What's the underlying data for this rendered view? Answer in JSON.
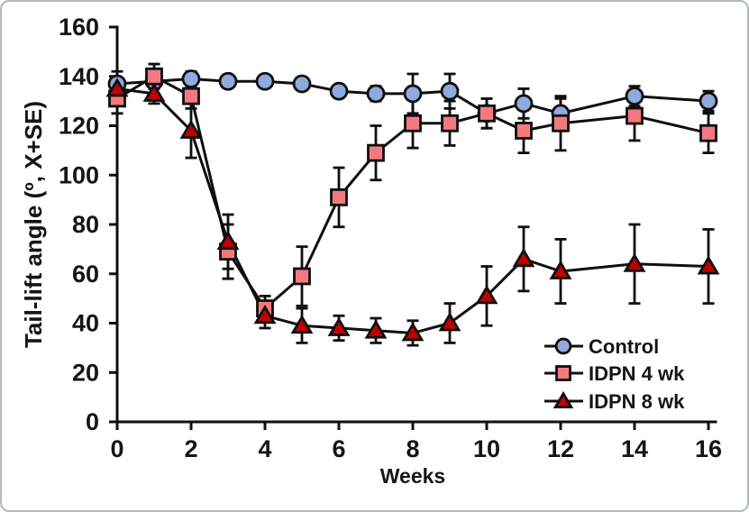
{
  "figure": {
    "background": "#ffffff",
    "border_color": "#b3bac2",
    "axis_color": "#0f0f0f",
    "text_color": "#151515"
  },
  "chart_data": {
    "type": "line",
    "title": "",
    "xlabel": "Weeks",
    "ylabel": "Tail-lift angle (º, X+SE)",
    "xlim": [
      0,
      16
    ],
    "ylim": [
      0,
      160
    ],
    "x_ticks": [
      0,
      2,
      4,
      6,
      8,
      10,
      12,
      14,
      16
    ],
    "y_ticks": [
      0,
      20,
      40,
      60,
      80,
      100,
      120,
      140,
      160
    ],
    "grid": false,
    "legend_position": "lower-right",
    "error_bars": true,
    "x": [
      0,
      1,
      2,
      3,
      4,
      5,
      6,
      7,
      8,
      9,
      10,
      11,
      12,
      14,
      16
    ],
    "series": [
      {
        "name": "Control",
        "marker": "circle",
        "marker_fill": "#8faadc",
        "marker_stroke": "#0f0f0f",
        "line_color": "#0f0f0f",
        "values": [
          137,
          138,
          139,
          138,
          138,
          137,
          134,
          133,
          133,
          134,
          125,
          129,
          125,
          132,
          130
        ],
        "se": [
          5,
          5,
          3,
          2,
          2,
          2,
          2,
          3,
          8,
          7,
          6,
          6,
          6,
          4,
          4
        ]
      },
      {
        "name": "IDPN 4 wk",
        "marker": "square",
        "marker_fill": "#f4797f",
        "marker_stroke": "#0f0f0f",
        "line_color": "#0f0f0f",
        "values": [
          131,
          140,
          132,
          69,
          46,
          59,
          91,
          109,
          121,
          121,
          125,
          118,
          121,
          124,
          117
        ],
        "se": [
          6,
          5,
          5,
          11,
          5,
          12,
          12,
          11,
          10,
          9,
          6,
          9,
          11,
          10,
          8
        ]
      },
      {
        "name": "IDPN 8 wk",
        "marker": "triangle",
        "marker_fill": "#c00000",
        "marker_stroke": "#0f0f0f",
        "line_color": "#0f0f0f",
        "values": [
          135,
          133,
          118,
          73,
          43,
          39,
          38,
          37,
          36,
          40,
          51,
          66,
          61,
          64,
          63
        ],
        "se": [
          4,
          4,
          11,
          11,
          5,
          7,
          5,
          5,
          5,
          8,
          12,
          13,
          13,
          16,
          15
        ]
      }
    ]
  }
}
